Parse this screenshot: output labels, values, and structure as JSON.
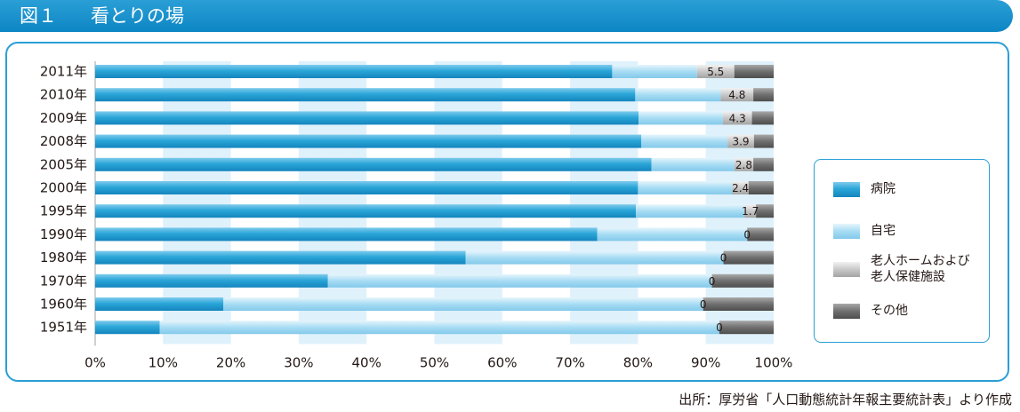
{
  "figure": {
    "number": "図１",
    "title": "看とりの場"
  },
  "source_note": "出所：厚労省「人口動態統計年報主要統計表」より作成",
  "legend": {
    "items": [
      {
        "label": "病院",
        "color": "#2aa6d8"
      },
      {
        "label": "自宅",
        "color": "#a7dcf4"
      },
      {
        "label": "老人ホームおよび\n老人保健施設",
        "color": "#bcbcbc"
      },
      {
        "label": "その他",
        "color": "#6f6f6f"
      }
    ]
  },
  "colors": {
    "hospital": "#2aa6d8",
    "home": "#a7dcf4",
    "nursing": "#bcbcbc",
    "other": "#6f6f6f",
    "band": "#dff1fb",
    "frame": "#2a9fd6"
  },
  "chart_data": {
    "type": "bar",
    "orientation": "horizontal",
    "stacked": true,
    "categories": [
      "2011年",
      "2010年",
      "2009年",
      "2008年",
      "2005年",
      "2000年",
      "1995年",
      "1990年",
      "1980年",
      "1970年",
      "1960年",
      "1951年"
    ],
    "series": [
      {
        "name": "病院",
        "values": [
          76.2,
          79.6,
          80.1,
          80.5,
          82.0,
          80.0,
          79.7,
          74.0,
          54.6,
          34.3,
          18.9,
          9.5
        ]
      },
      {
        "name": "自宅",
        "values": [
          12.5,
          12.6,
          12.4,
          12.7,
          12.2,
          13.9,
          16.0,
          22.1,
          38.0,
          56.6,
          70.7,
          82.5
        ]
      },
      {
        "name": "老人ホームおよび老人保健施設",
        "values": [
          5.5,
          4.8,
          4.3,
          3.9,
          2.8,
          2.4,
          1.7,
          0,
          0,
          0,
          0,
          0
        ]
      },
      {
        "name": "その他",
        "values": [
          5.8,
          3.0,
          3.2,
          2.9,
          3.0,
          3.7,
          2.6,
          3.9,
          7.4,
          9.1,
          10.4,
          8.0
        ]
      }
    ],
    "data_labels": [
      "5.5",
      "4.8",
      "4.3",
      "3.9",
      "2.8",
      "2.4",
      "1.7",
      "0",
      "0",
      "0",
      "0",
      "0"
    ],
    "xlim": [
      0,
      100
    ],
    "x_ticks": [
      "0%",
      "10%",
      "20%",
      "30%",
      "40%",
      "50%",
      "60%",
      "70%",
      "80%",
      "90%",
      "100%"
    ],
    "grid": "alternating vertical bands",
    "legend_position": "right"
  }
}
